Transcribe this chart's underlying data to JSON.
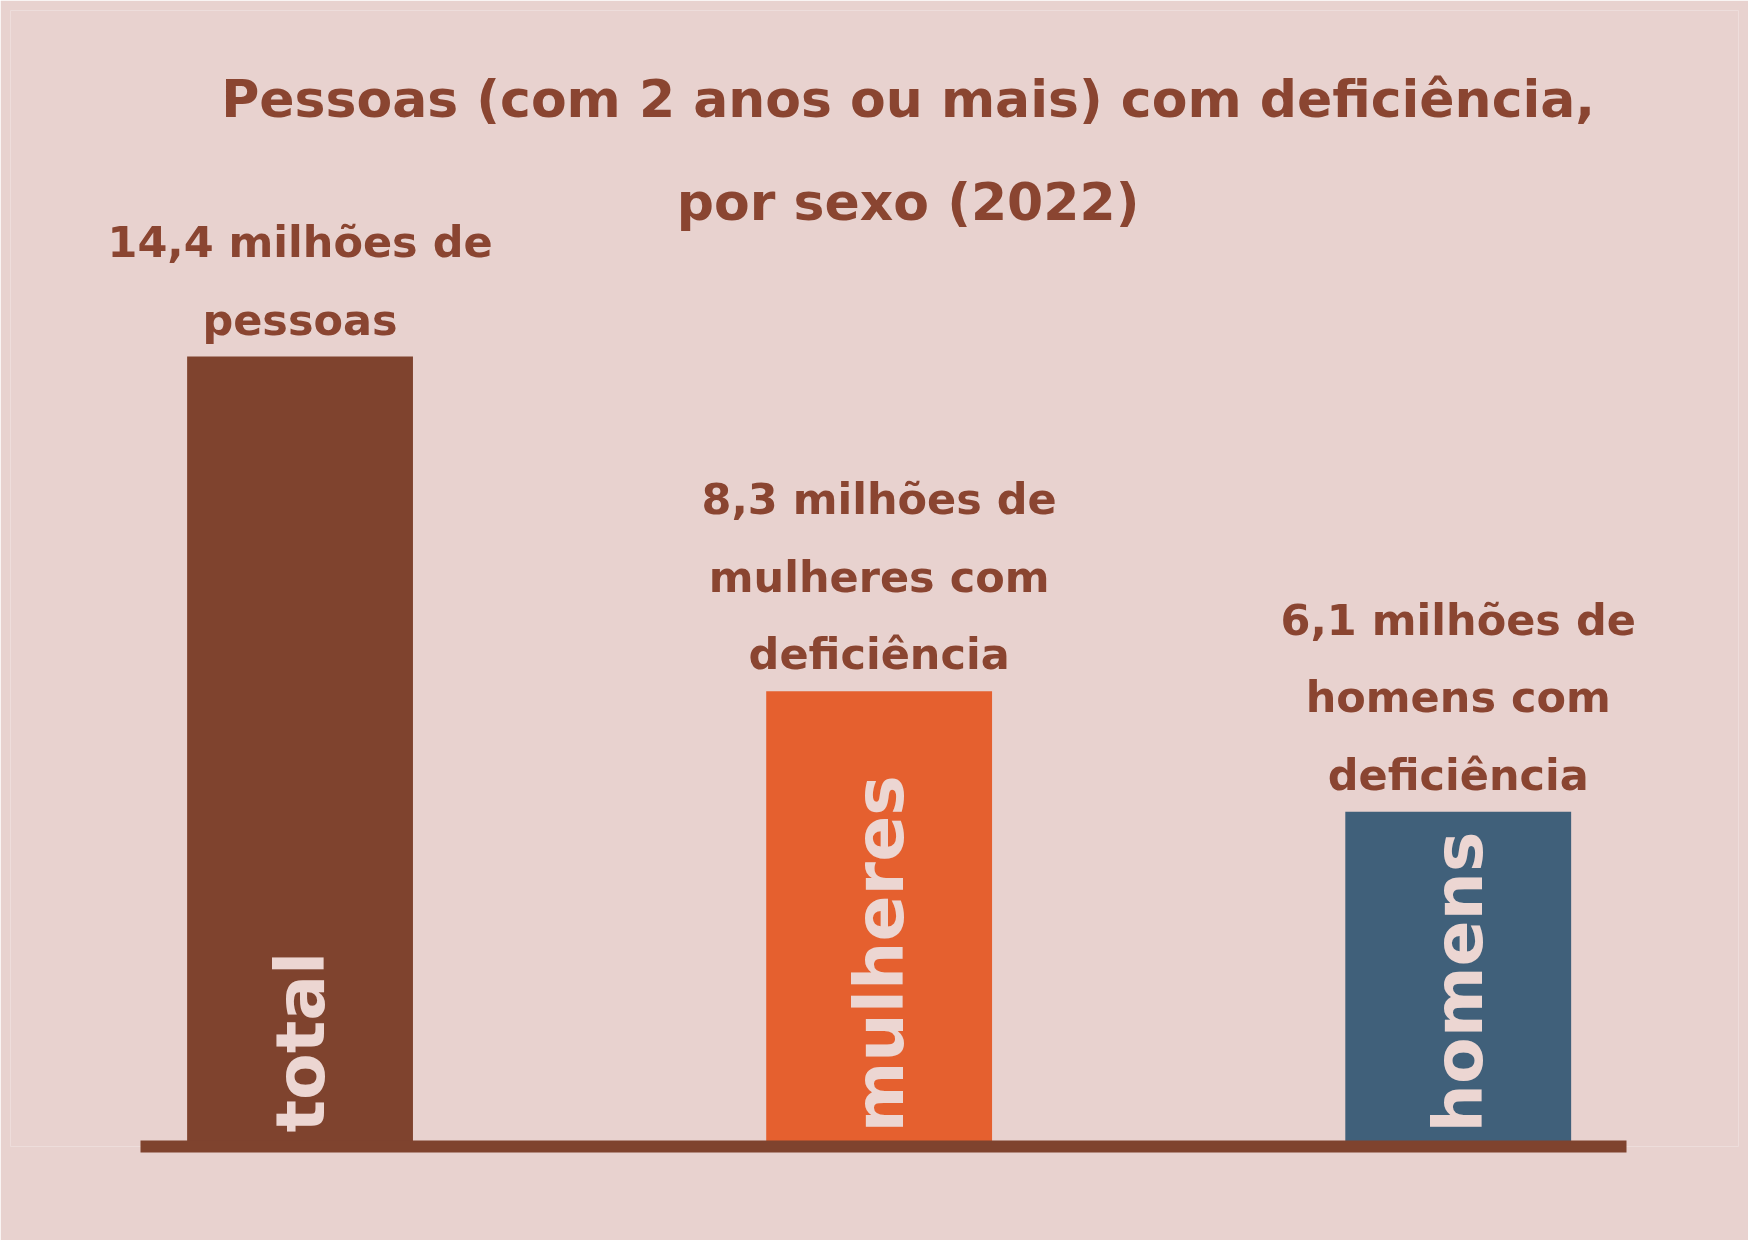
{
  "chart_data": {
    "type": "bar",
    "title": "Pessoas (com 2 anos ou mais) com deficiência, por sexo (2022)",
    "categories": [
      "total",
      "mulheres",
      "homens"
    ],
    "values": [
      14.4,
      8.3,
      6.1
    ],
    "colors": [
      "#7f432e",
      "#e5602f",
      "#40607a"
    ],
    "value_labels": [
      "14,4 milhões de pessoas",
      "8,3 milhões de mulheres com deficiência",
      "6,1 milhões de homens com deficiência"
    ]
  }
}
